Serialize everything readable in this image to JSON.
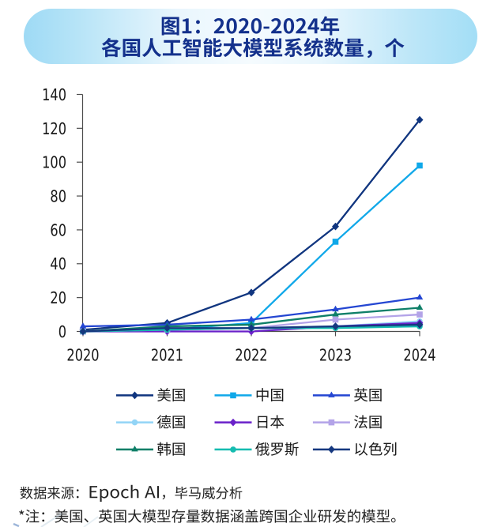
{
  "header": {
    "title_line1": "图1：2020-2024年",
    "title_line2": "各国人工智能大模型系统数量，个"
  },
  "chart_data": {
    "type": "line",
    "title": "图1：2020-2024年 各国人工智能大模型系统数量，个",
    "xlabel": "",
    "ylabel": "",
    "categories": [
      "2020",
      "2021",
      "2022",
      "2023",
      "2024"
    ],
    "ylim": [
      0,
      140
    ],
    "ytick_step": 20,
    "yticks": [
      "0",
      "20",
      "40",
      "60",
      "80",
      "100",
      "120",
      "140"
    ],
    "grid": false,
    "legend_position": "bottom",
    "series": [
      {
        "name": "美国",
        "values": [
          1,
          5,
          23,
          62,
          125
        ],
        "color": "#10357f",
        "marker": "diamond"
      },
      {
        "name": "中国",
        "values": [
          0,
          1,
          5,
          53,
          98
        ],
        "color": "#10a8e9",
        "marker": "square"
      },
      {
        "name": "英国",
        "values": [
          3,
          4,
          7,
          13,
          20
        ],
        "color": "#2446d2",
        "marker": "triangle"
      },
      {
        "name": "德国",
        "values": [
          0,
          1,
          2,
          3,
          6
        ],
        "color": "#92d4f6",
        "marker": "circle"
      },
      {
        "name": "日本",
        "values": [
          0,
          0,
          0,
          3,
          5
        ],
        "color": "#6a21c9",
        "marker": "diamond"
      },
      {
        "name": "法国",
        "values": [
          0,
          1,
          2,
          7,
          10
        ],
        "color": "#b3a3e8",
        "marker": "square"
      },
      {
        "name": "韩国",
        "values": [
          0,
          3,
          4,
          10,
          14
        ],
        "color": "#0e7f68",
        "marker": "triangle"
      },
      {
        "name": "俄罗斯",
        "values": [
          0,
          1,
          2,
          2,
          3
        ],
        "color": "#15bcb0",
        "marker": "circle"
      },
      {
        "name": "以色列",
        "values": [
          0,
          2,
          2,
          3,
          4
        ],
        "color": "#15387f",
        "marker": "diamond"
      }
    ]
  },
  "footer": {
    "source": "数据来源：Epoch AI，毕马威分析",
    "note": "*注：美国、英国大模型存量数据涵盖跨国企业研发的模型。"
  },
  "colors": {
    "banner_gradient_left": "#9edaf5",
    "banner_gradient_middle": "#ecf8fd",
    "banner_gradient_right": "#a7dff6",
    "banner_text": "#14318c",
    "axis": "#4d4d4d",
    "tick_label": "#1a1a1a",
    "footer_text": "#222222"
  }
}
